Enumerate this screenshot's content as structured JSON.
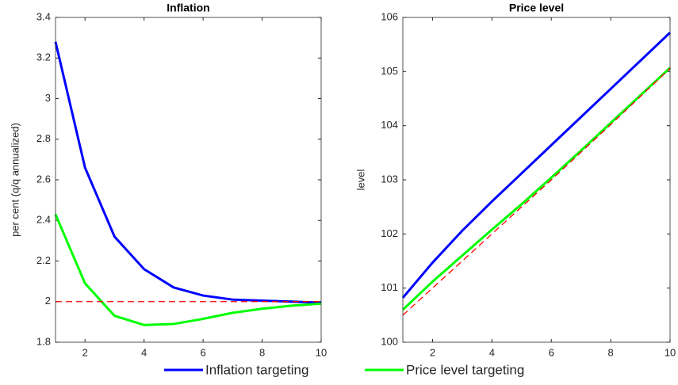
{
  "chart_data": [
    {
      "type": "line",
      "title": "Inflation",
      "ylabel": "per cent (q/q annualized)",
      "x": [
        1,
        2,
        3,
        4,
        5,
        6,
        7,
        8,
        9,
        10
      ],
      "xlim": [
        1,
        10
      ],
      "xticks": [
        2,
        4,
        6,
        8,
        10
      ],
      "ylim": [
        1.8,
        3.4
      ],
      "yticks": [
        1.8,
        2,
        2.2,
        2.4,
        2.6,
        2.8,
        3,
        3.2,
        3.4
      ],
      "grid": false,
      "series": [
        {
          "name": "Inflation targeting",
          "color": "#0000ff",
          "values": [
            3.28,
            2.66,
            2.32,
            2.16,
            2.07,
            2.03,
            2.01,
            2.005,
            2.0,
            1.995
          ]
        },
        {
          "name": "Price level targeting",
          "color": "#00ff00",
          "values": [
            2.43,
            2.09,
            1.93,
            1.885,
            1.89,
            1.915,
            1.945,
            1.965,
            1.98,
            1.99
          ]
        },
        {
          "color": "#ff0000",
          "dashed": true,
          "values": [
            2,
            2,
            2,
            2,
            2,
            2,
            2,
            2,
            2,
            2
          ]
        }
      ]
    },
    {
      "type": "line",
      "title": "Price level",
      "ylabel": "level",
      "x": [
        1,
        2,
        3,
        4,
        5,
        6,
        7,
        8,
        9,
        10
      ],
      "xlim": [
        1,
        10
      ],
      "xticks": [
        2,
        4,
        6,
        8,
        10
      ],
      "ylim": [
        100,
        106
      ],
      "yticks": [
        100,
        101,
        102,
        103,
        104,
        105,
        106
      ],
      "grid": false,
      "series": [
        {
          "color": "#0000ff",
          "values": [
            100.82,
            101.47,
            102.06,
            102.6,
            103.12,
            103.64,
            104.16,
            104.68,
            105.2,
            105.72
          ]
        },
        {
          "color": "#00ff00",
          "values": [
            100.6,
            101.12,
            101.6,
            102.08,
            102.55,
            103.04,
            103.54,
            104.05,
            104.56,
            105.07
          ]
        },
        {
          "color": "#ff0000",
          "dashed": true,
          "values": [
            100.5,
            101.0,
            101.5,
            102.0,
            102.5,
            103.0,
            103.51,
            104.02,
            104.54,
            105.06
          ]
        }
      ]
    }
  ]
}
